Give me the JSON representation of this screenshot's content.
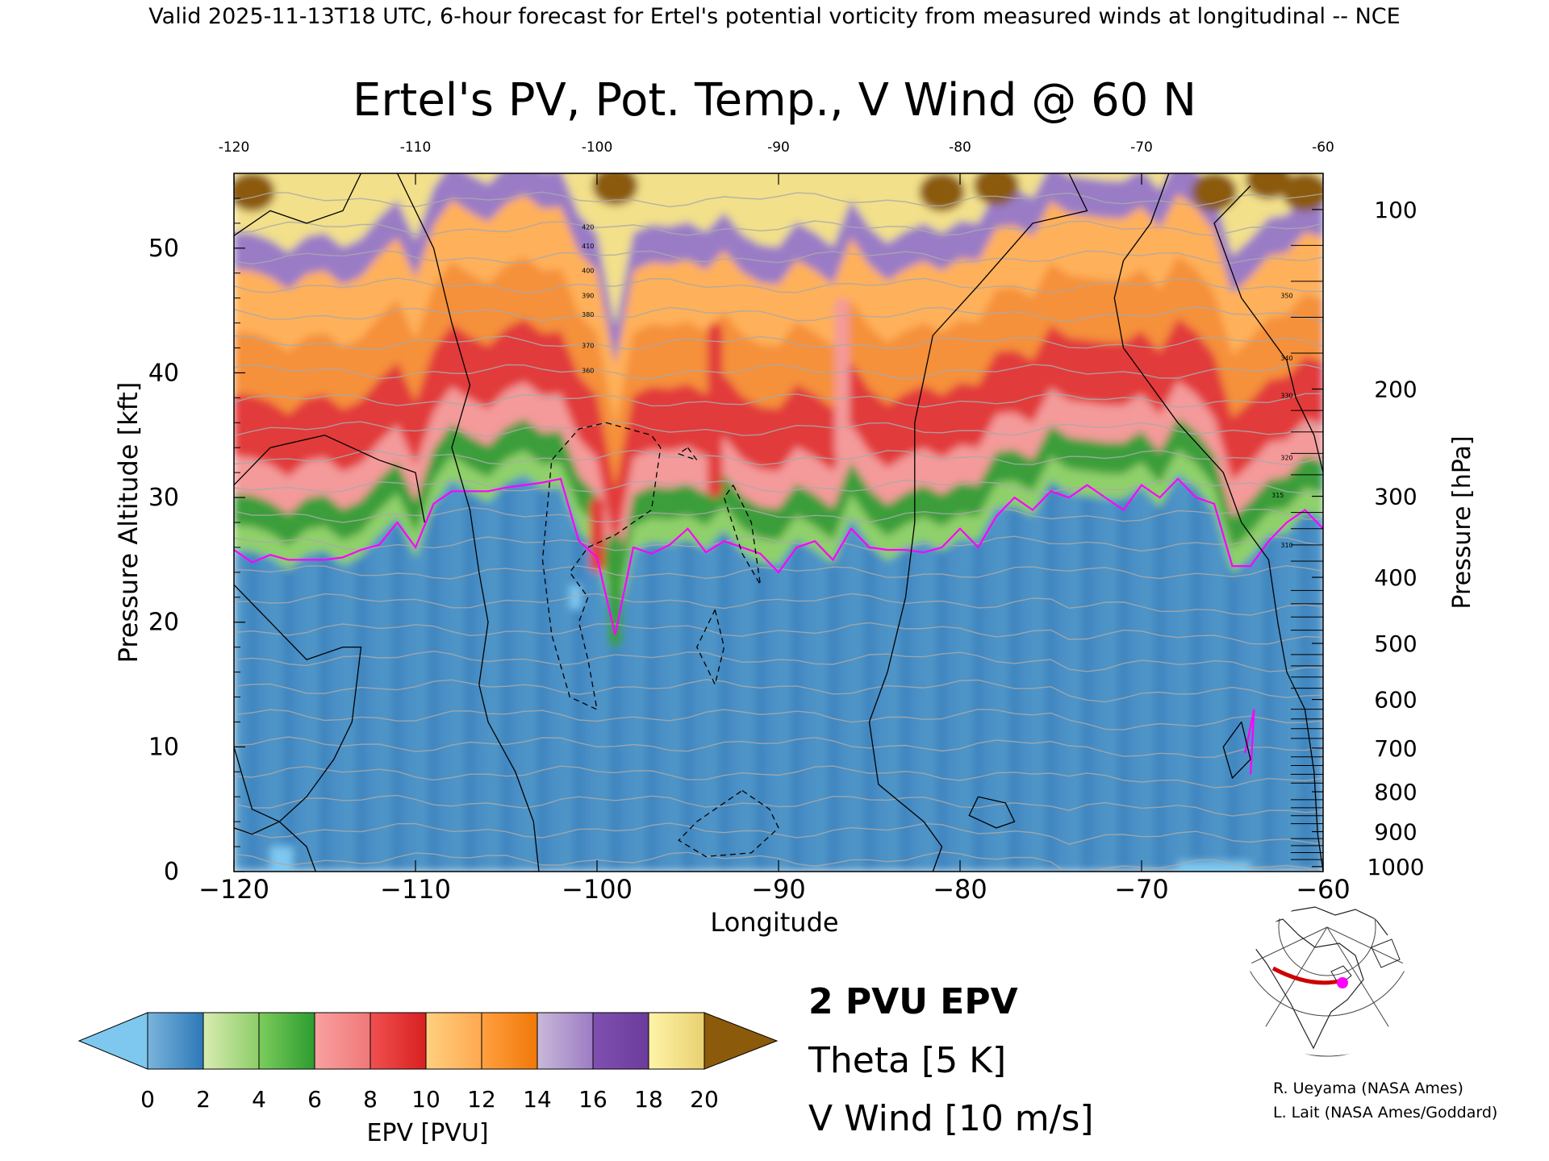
{
  "header_text": "Valid 2025-11-13T18 UTC, 6-hour forecast for Ertel's potential vorticity from measured winds at longitudinal -- NCE",
  "credits": [
    "R. Ueyama (NASA Ames)",
    "L. Lait (NASA Ames/Goddard)"
  ],
  "chart_data": {
    "type": "heatmap",
    "title": "Ertel's PV, Pot. Temp., V Wind @ 60 N",
    "xlabel": "Longitude",
    "ylabel_left": "Pressure Altitude [kft]",
    "ylabel_right": "Pressure [hPa]",
    "xlim": [
      -120,
      -60
    ],
    "ylim": [
      0,
      56
    ],
    "x_ticks": [
      -120,
      -110,
      -100,
      -90,
      -80,
      -70,
      -60
    ],
    "x_tick_labels": [
      "−120",
      "−110",
      "−100",
      "−90",
      "−80",
      "−70",
      "−60"
    ],
    "top_tick_labels": [
      "-120",
      "-110",
      "-100",
      "-90",
      "-80",
      "-70",
      "-60"
    ],
    "y_ticks_kft": [
      0,
      10,
      20,
      30,
      40,
      50
    ],
    "pressure_ticks": [
      {
        "label": "100",
        "kft": 53.1
      },
      {
        "label": "200",
        "kft": 38.7
      },
      {
        "label": "300",
        "kft": 30.1
      },
      {
        "label": "400",
        "kft": 23.6
      },
      {
        "label": "500",
        "kft": 18.3
      },
      {
        "label": "600",
        "kft": 13.8
      },
      {
        "label": "700",
        "kft": 9.9
      },
      {
        "label": "800",
        "kft": 6.4
      },
      {
        "label": "900",
        "kft": 3.2
      },
      {
        "label": "1000",
        "kft": 0.4
      }
    ],
    "epv_colorbar": {
      "label": "EPV [PVU]",
      "tick_labels": [
        "0",
        "2",
        "4",
        "6",
        "8",
        "10",
        "12",
        "14",
        "16",
        "18",
        "20"
      ],
      "under_color": "#7ec8f0",
      "over_color": "#8b5a0a",
      "bins": [
        [
          "#7ab4dc",
          "#2c78b8"
        ],
        [
          "#d8ecb0",
          "#8ccd68"
        ],
        [
          "#7ccc5c",
          "#2c9c30"
        ],
        [
          "#f8a0a0",
          "#f07878"
        ],
        [
          "#f05050",
          "#d82020"
        ],
        [
          "#ffd080",
          "#ffa850"
        ],
        [
          "#ffa040",
          "#f07808"
        ],
        [
          "#c8b8d8",
          "#9c7cc4"
        ],
        [
          "#8050b0",
          "#6c3c9c"
        ],
        [
          "#fff4a8",
          "#e8d070"
        ]
      ]
    },
    "tropopause_2pvu_kft": {
      "lon": [
        -120,
        -119,
        -118,
        -117,
        -116,
        -115,
        -114,
        -113,
        -112,
        -111,
        -110,
        -109,
        -108,
        -107,
        -106,
        -105,
        -104,
        -103,
        -102,
        -101,
        -100,
        -99,
        -98,
        -97,
        -96,
        -95,
        -94,
        -93,
        -92,
        -91,
        -90,
        -89,
        -88,
        -87,
        -86,
        -85,
        -84,
        -83,
        -82,
        -81,
        -80,
        -79,
        -78,
        -77,
        -76,
        -75,
        -74,
        -73,
        -72,
        -71,
        -70,
        -69,
        -68,
        -67,
        -66,
        -65,
        -64,
        -63,
        -62,
        -61,
        -60
      ],
      "kft": [
        25.8,
        24.8,
        25.4,
        25.0,
        25.0,
        25.0,
        25.2,
        25.8,
        26.2,
        28.0,
        26.0,
        29.5,
        30.5,
        30.5,
        30.5,
        30.8,
        31.0,
        31.2,
        31.5,
        26.5,
        25.2,
        19.0,
        26.0,
        25.5,
        26.2,
        27.5,
        25.6,
        26.5,
        26.0,
        25.5,
        24.0,
        26.0,
        26.5,
        25.0,
        27.5,
        26.0,
        25.8,
        25.8,
        25.6,
        26.0,
        27.5,
        26.0,
        28.5,
        30.0,
        29.0,
        30.5,
        30.0,
        31.0,
        30.0,
        29.0,
        31.0,
        30.0,
        31.5,
        30.0,
        29.5,
        24.5,
        24.5,
        26.5,
        28.0,
        29.0,
        27.5
      ]
    },
    "theta_contours": {
      "label": "Theta [5 K]",
      "interval_K": 5,
      "labels": [
        "310",
        "315",
        "320",
        "330",
        "340",
        "350",
        "360",
        "370",
        "380",
        "390",
        "400",
        "410",
        "420"
      ]
    },
    "v_wind_contours": {
      "label": "V Wind [10 m/s]",
      "levels": [
        "-10",
        "0",
        "10"
      ]
    },
    "legend": [
      {
        "label": "2 PVU EPV",
        "color": "#ff00ff"
      },
      {
        "label": "Theta [5 K]",
        "color": "#aaaaaa"
      },
      {
        "label": "V Wind [10 m/s]",
        "color": "#000000"
      }
    ],
    "locator_map": {
      "latitude": 60,
      "lon_range": [
        -120,
        -60
      ],
      "line_color": "#cc0000",
      "marker_color": "#ff00ff"
    }
  }
}
